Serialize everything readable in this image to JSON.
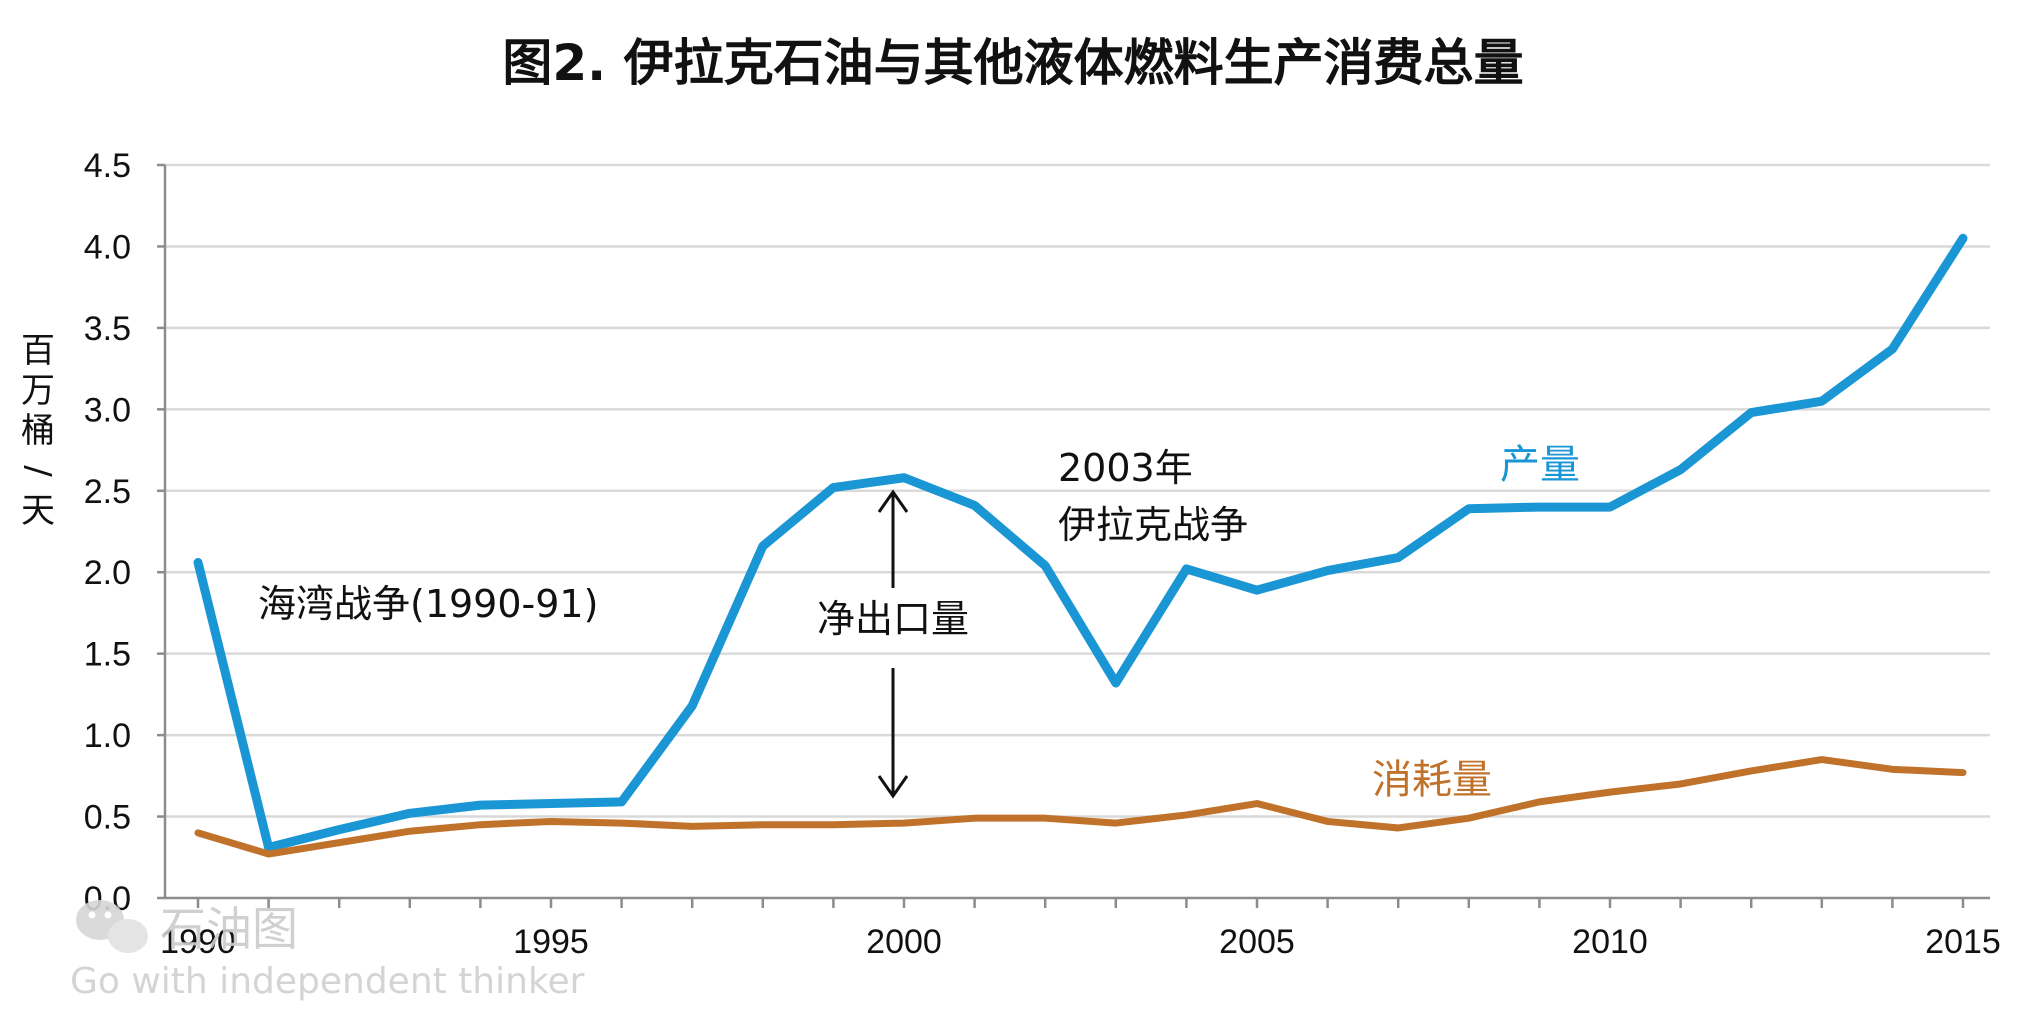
{
  "chart_data": {
    "type": "line",
    "title": "图2. 伊拉克石油与其他液体燃料生产消费总量",
    "ylabel": "百万桶/天",
    "xlabel": "",
    "xlim": [
      1990,
      2015
    ],
    "ylim": [
      0,
      4.5
    ],
    "yticks": [
      0,
      0.5,
      1.0,
      1.5,
      2.0,
      2.5,
      3.0,
      3.5,
      4.0,
      4.5
    ],
    "ytick_labels": [
      "0.0",
      "0.5",
      "1.0",
      "1.5",
      "2.0",
      "2.5",
      "3.0",
      "3.5",
      "4.0",
      "4.5"
    ],
    "xtick_labels": [
      "1990",
      "1995",
      "2000",
      "2005",
      "2010",
      "2015"
    ],
    "x": [
      1990,
      1991,
      1992,
      1993,
      1994,
      1995,
      1996,
      1997,
      1998,
      1999,
      2000,
      2001,
      2002,
      2003,
      2004,
      2005,
      2006,
      2007,
      2008,
      2009,
      2010,
      2011,
      2012,
      2013,
      2014,
      2015
    ],
    "series": [
      {
        "name": "产量",
        "color": "#1a96d4",
        "values": [
          2.06,
          0.31,
          0.42,
          0.52,
          0.57,
          0.58,
          0.59,
          1.18,
          2.16,
          2.52,
          2.58,
          2.41,
          2.04,
          1.32,
          2.02,
          1.89,
          2.01,
          2.09,
          2.39,
          2.4,
          2.4,
          2.63,
          2.98,
          3.05,
          3.37,
          4.05
        ]
      },
      {
        "name": "消耗量",
        "color": "#c0722b",
        "values": [
          0.4,
          0.27,
          0.34,
          0.41,
          0.45,
          0.47,
          0.46,
          0.44,
          0.45,
          0.45,
          0.46,
          0.49,
          0.49,
          0.46,
          0.51,
          0.58,
          0.47,
          0.43,
          0.49,
          0.59,
          0.65,
          0.7,
          0.78,
          0.85,
          0.79,
          0.77
        ]
      }
    ],
    "annotations": {
      "gulf_war": "海湾战争(1990-91)",
      "net_export": "净出口量",
      "iraq_war_year": "2003年",
      "iraq_war": "伊拉克战争"
    },
    "grid": true
  },
  "watermark": {
    "name": "石油图",
    "slogan": "Go with independent thinker"
  }
}
